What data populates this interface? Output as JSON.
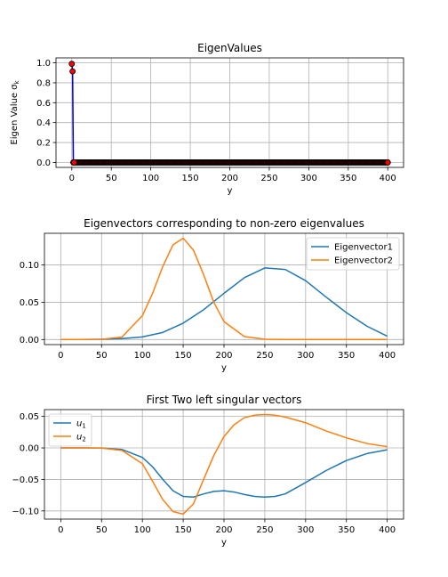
{
  "chart_data": [
    {
      "type": "line",
      "title": "EigenValues",
      "xlabel": "y",
      "ylabel": "Eigen Value σ_k",
      "xlim": [
        -20,
        420
      ],
      "ylim": [
        -0.05,
        1.05
      ],
      "xticks": [
        0,
        50,
        100,
        150,
        200,
        250,
        300,
        350,
        400
      ],
      "yticks": [
        0.0,
        0.2,
        0.4,
        0.6,
        0.8,
        1.0
      ],
      "xtick_labels": [
        "0",
        "50",
        "100",
        "150",
        "200",
        "250",
        "300",
        "350",
        "400"
      ],
      "ytick_labels": [
        "0.0",
        "0.2",
        "0.4",
        "0.6",
        "0.8",
        "1.0"
      ],
      "grid": true,
      "legend": null,
      "series": [
        {
          "color": "#0000cc",
          "marker": "circle",
          "marker_face": "#ff0000",
          "marker_edge": "#000000",
          "points": [
            [
              0,
              0.99
            ],
            [
              1,
              0.915
            ],
            [
              2,
              0.0
            ],
            [
              3,
              0.0
            ],
            [
              400,
              0.0
            ]
          ],
          "zero_tail": {
            "from": 2,
            "to": 400,
            "value": 0.0
          }
        }
      ]
    },
    {
      "type": "line",
      "title": "Eigenvectors corresponding to non-zero eigenvalues",
      "xlabel": "y",
      "ylabel": "",
      "xlim": [
        -20,
        420
      ],
      "ylim": [
        -0.0068,
        0.1425
      ],
      "xticks": [
        0,
        50,
        100,
        150,
        200,
        250,
        300,
        350,
        400
      ],
      "yticks": [
        0.0,
        0.05,
        0.1
      ],
      "xtick_labels": [
        "0",
        "50",
        "100",
        "150",
        "200",
        "250",
        "300",
        "350",
        "400"
      ],
      "ytick_labels": [
        "0.00",
        "0.05",
        "0.10"
      ],
      "grid": true,
      "legend": "top-right",
      "series": [
        {
          "name": "Eigenvector1",
          "color": "#1f77b4",
          "x": [
            0,
            25,
            50,
            75,
            100,
            125,
            150,
            175,
            200,
            225,
            250,
            275,
            300,
            325,
            350,
            375,
            400
          ],
          "y": [
            0.0,
            0.0,
            0.0004,
            0.0012,
            0.0035,
            0.0095,
            0.022,
            0.04,
            0.062,
            0.083,
            0.096,
            0.094,
            0.079,
            0.057,
            0.036,
            0.018,
            0.0045
          ]
        },
        {
          "name": "Eigenvector2",
          "color": "#ff7f0e",
          "x": [
            0,
            25,
            50,
            75,
            100,
            112.5,
            125,
            137.5,
            150,
            162.5,
            175,
            187.5,
            200,
            225,
            250,
            275,
            300,
            350,
            400
          ],
          "y": [
            0.0,
            0.0,
            0.0002,
            0.0034,
            0.032,
            0.062,
            0.098,
            0.127,
            0.136,
            0.12,
            0.087,
            0.05,
            0.024,
            0.004,
            0.0004,
            0.0,
            0.0,
            0.0,
            0.0
          ]
        }
      ]
    },
    {
      "type": "line",
      "title": "First Two left singular vectors",
      "xlabel": "y",
      "ylabel": "",
      "xlim": [
        -20,
        420
      ],
      "ylim": [
        -0.113,
        0.0608
      ],
      "xticks": [
        0,
        50,
        100,
        150,
        200,
        250,
        300,
        350,
        400
      ],
      "yticks": [
        -0.1,
        -0.05,
        0.0,
        0.05
      ],
      "xtick_labels": [
        "0",
        "50",
        "100",
        "150",
        "200",
        "250",
        "300",
        "350",
        "400"
      ],
      "ytick_labels": [
        "−0.10",
        "−0.05",
        "0.00",
        "0.05"
      ],
      "grid": true,
      "legend": "top-left",
      "series": [
        {
          "name": "u",
          "subscript": "1",
          "color": "#1f77b4",
          "x": [
            0,
            25,
            50,
            75,
            100,
            112.5,
            125,
            137.5,
            150,
            162.5,
            175,
            187.5,
            200,
            212.5,
            225,
            237.5,
            250,
            262.5,
            275,
            300,
            325,
            350,
            375,
            400
          ],
          "y": [
            0.0,
            0.0,
            -0.0002,
            -0.0025,
            -0.015,
            -0.03,
            -0.05,
            -0.068,
            -0.077,
            -0.078,
            -0.073,
            -0.069,
            -0.068,
            -0.07,
            -0.074,
            -0.077,
            -0.078,
            -0.077,
            -0.073,
            -0.055,
            -0.036,
            -0.02,
            -0.009,
            -0.003
          ]
        },
        {
          "name": "u",
          "subscript": "2",
          "color": "#ff7f0e",
          "x": [
            0,
            25,
            50,
            75,
            100,
            112.5,
            125,
            137.5,
            150,
            162.5,
            175,
            187.5,
            200,
            212.5,
            225,
            237.5,
            250,
            262.5,
            275,
            300,
            325,
            350,
            375,
            400
          ],
          "y": [
            0.0,
            0.0,
            -0.0003,
            -0.004,
            -0.025,
            -0.053,
            -0.082,
            -0.101,
            -0.105,
            -0.089,
            -0.05,
            -0.012,
            0.018,
            0.037,
            0.048,
            0.052,
            0.053,
            0.052,
            0.049,
            0.04,
            0.027,
            0.016,
            0.007,
            0.002
          ]
        }
      ]
    }
  ]
}
